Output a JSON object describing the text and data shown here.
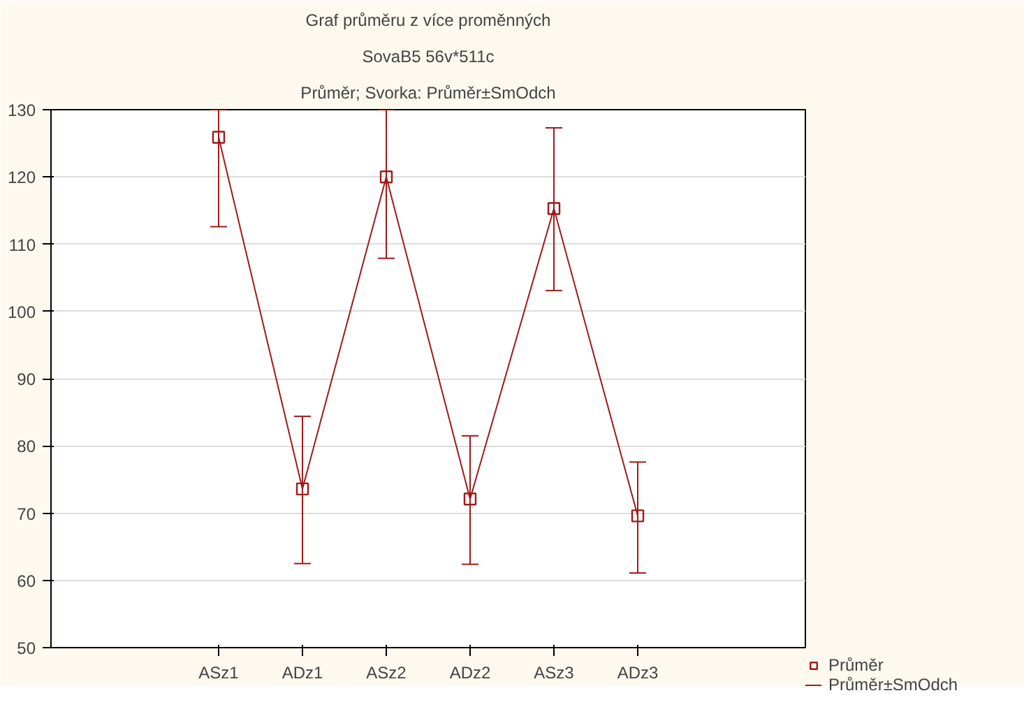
{
  "chart_data": {
    "type": "line",
    "title": "Graf průměru z více proměnných",
    "subtitle": "SovaB5 56v*511c",
    "annotations": [
      "Průměr; Svorka: Průměr±SmOdch",
      "Průměr±SmOdch"
    ],
    "categories": [
      "ASz1",
      "ADz1",
      "ASz2",
      "ADz2",
      "ASz3",
      "ADz3"
    ],
    "series": [
      {
        "name": "Průměr",
        "color": "#a01a1a",
        "values": [
          125.9,
          73.6,
          120.0,
          72.1,
          115.3,
          69.6
        ],
        "errors": [
          [
            112.6,
            130
          ],
          [
            62.5,
            84.4
          ],
          [
            107.9,
            130
          ],
          [
            62.4,
            81.5
          ],
          [
            103.1,
            127.3
          ],
          [
            61.1,
            77.6
          ]
        ]
      }
    ],
    "ylim": [
      50,
      130
    ],
    "yticks": [
      50,
      60,
      70,
      80,
      90,
      100,
      110,
      120,
      130
    ],
    "grid": "y",
    "marker": "square",
    "line_style": "solid",
    "legend": "bottom right"
  }
}
